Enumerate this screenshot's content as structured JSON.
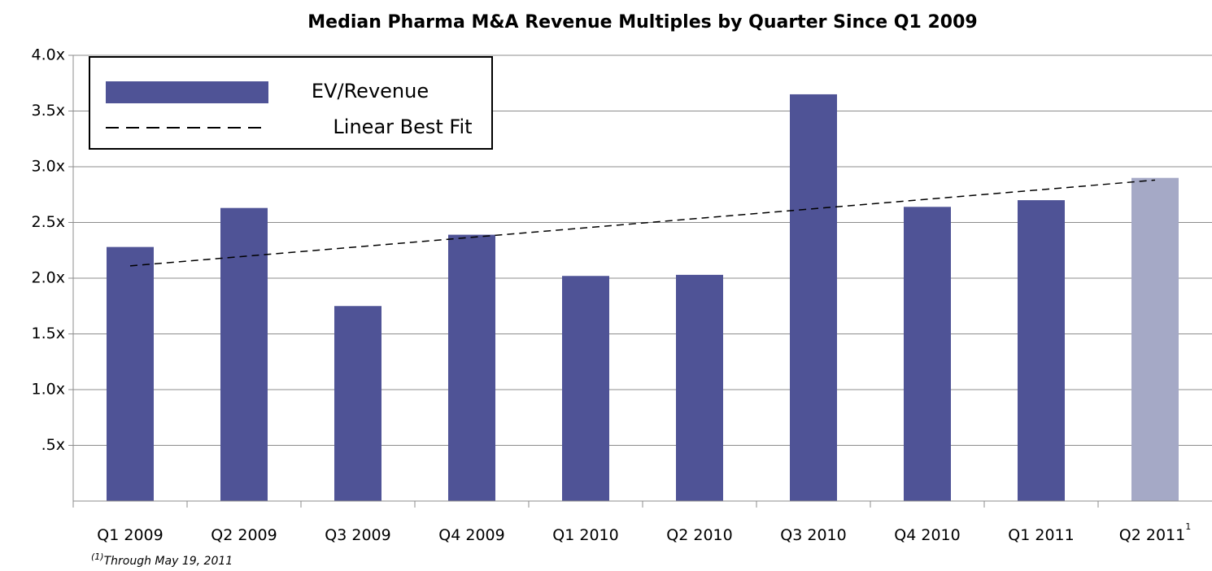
{
  "chart_data": {
    "type": "bar",
    "title": "Median Pharma M&A Revenue Multiples by Quarter Since Q1 2009",
    "categories": [
      "Q1 2009",
      "Q2 2009",
      "Q3 2009",
      "Q4 2009",
      "Q1 2010",
      "Q2 2010",
      "Q3 2010",
      "Q4 2010",
      "Q1 2011",
      "Q2 2011"
    ],
    "category_notes": [
      null,
      null,
      null,
      null,
      null,
      null,
      null,
      null,
      null,
      "1"
    ],
    "series": [
      {
        "name": "EV/Revenue",
        "color": "#4f5396",
        "values": [
          2.28,
          2.63,
          1.75,
          2.39,
          2.02,
          2.03,
          3.65,
          2.64,
          2.7,
          2.9
        ],
        "bar_colors": [
          "#4f5396",
          "#4f5396",
          "#4f5396",
          "#4f5396",
          "#4f5396",
          "#4f5396",
          "#4f5396",
          "#4f5396",
          "#4f5396",
          "#a5a9c6"
        ]
      }
    ],
    "trendline": {
      "name": "Linear Best Fit",
      "color": "#000000",
      "values": [
        2.11,
        2.88
      ]
    },
    "ylim": [
      0,
      4.0
    ],
    "yticks": [
      {
        "value": 0.5,
        "label": ".5x"
      },
      {
        "value": 1.0,
        "label": "1.0x"
      },
      {
        "value": 1.5,
        "label": "1.5x"
      },
      {
        "value": 2.0,
        "label": "2.0x"
      },
      {
        "value": 2.5,
        "label": "2.5x"
      },
      {
        "value": 3.0,
        "label": "3.0x"
      },
      {
        "value": 3.5,
        "label": "3.5x"
      },
      {
        "value": 4.0,
        "label": "4.0x"
      }
    ],
    "grid": true,
    "legend": "top-left",
    "footnote": {
      "marker": "(1)",
      "text": "Through May 19, 2011"
    }
  }
}
